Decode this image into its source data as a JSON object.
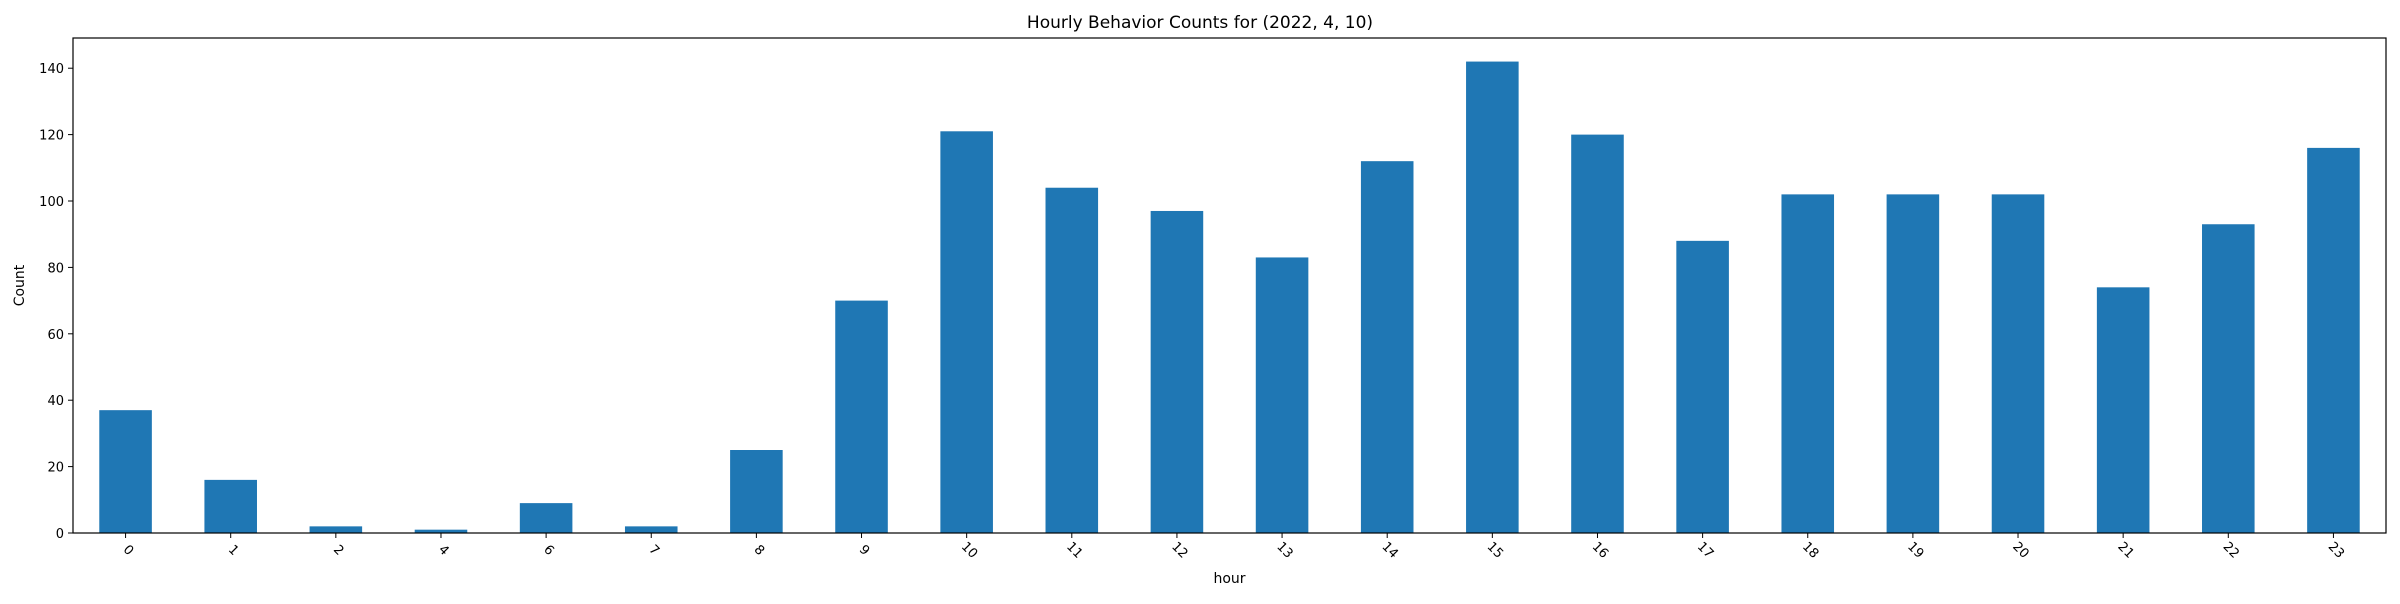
{
  "chart_data": {
    "type": "bar",
    "title": "Hourly Behavior Counts for (2022, 4, 10)",
    "xlabel": "hour",
    "ylabel": "Count",
    "categories": [
      "0",
      "1",
      "2",
      "4",
      "6",
      "7",
      "8",
      "9",
      "10",
      "11",
      "12",
      "13",
      "14",
      "15",
      "16",
      "17",
      "18",
      "19",
      "20",
      "21",
      "22",
      "23"
    ],
    "values": [
      37,
      16,
      2,
      1,
      9,
      2,
      25,
      70,
      121,
      104,
      97,
      83,
      112,
      142,
      120,
      88,
      102,
      102,
      102,
      74,
      93,
      116
    ],
    "ylim": [
      0,
      149.1
    ],
    "yticks": [
      0,
      20,
      40,
      60,
      80,
      100,
      120,
      140
    ],
    "grid": false,
    "legend": "none",
    "bar_color": "#1f77b4",
    "xtick_rotation_deg": 45
  }
}
